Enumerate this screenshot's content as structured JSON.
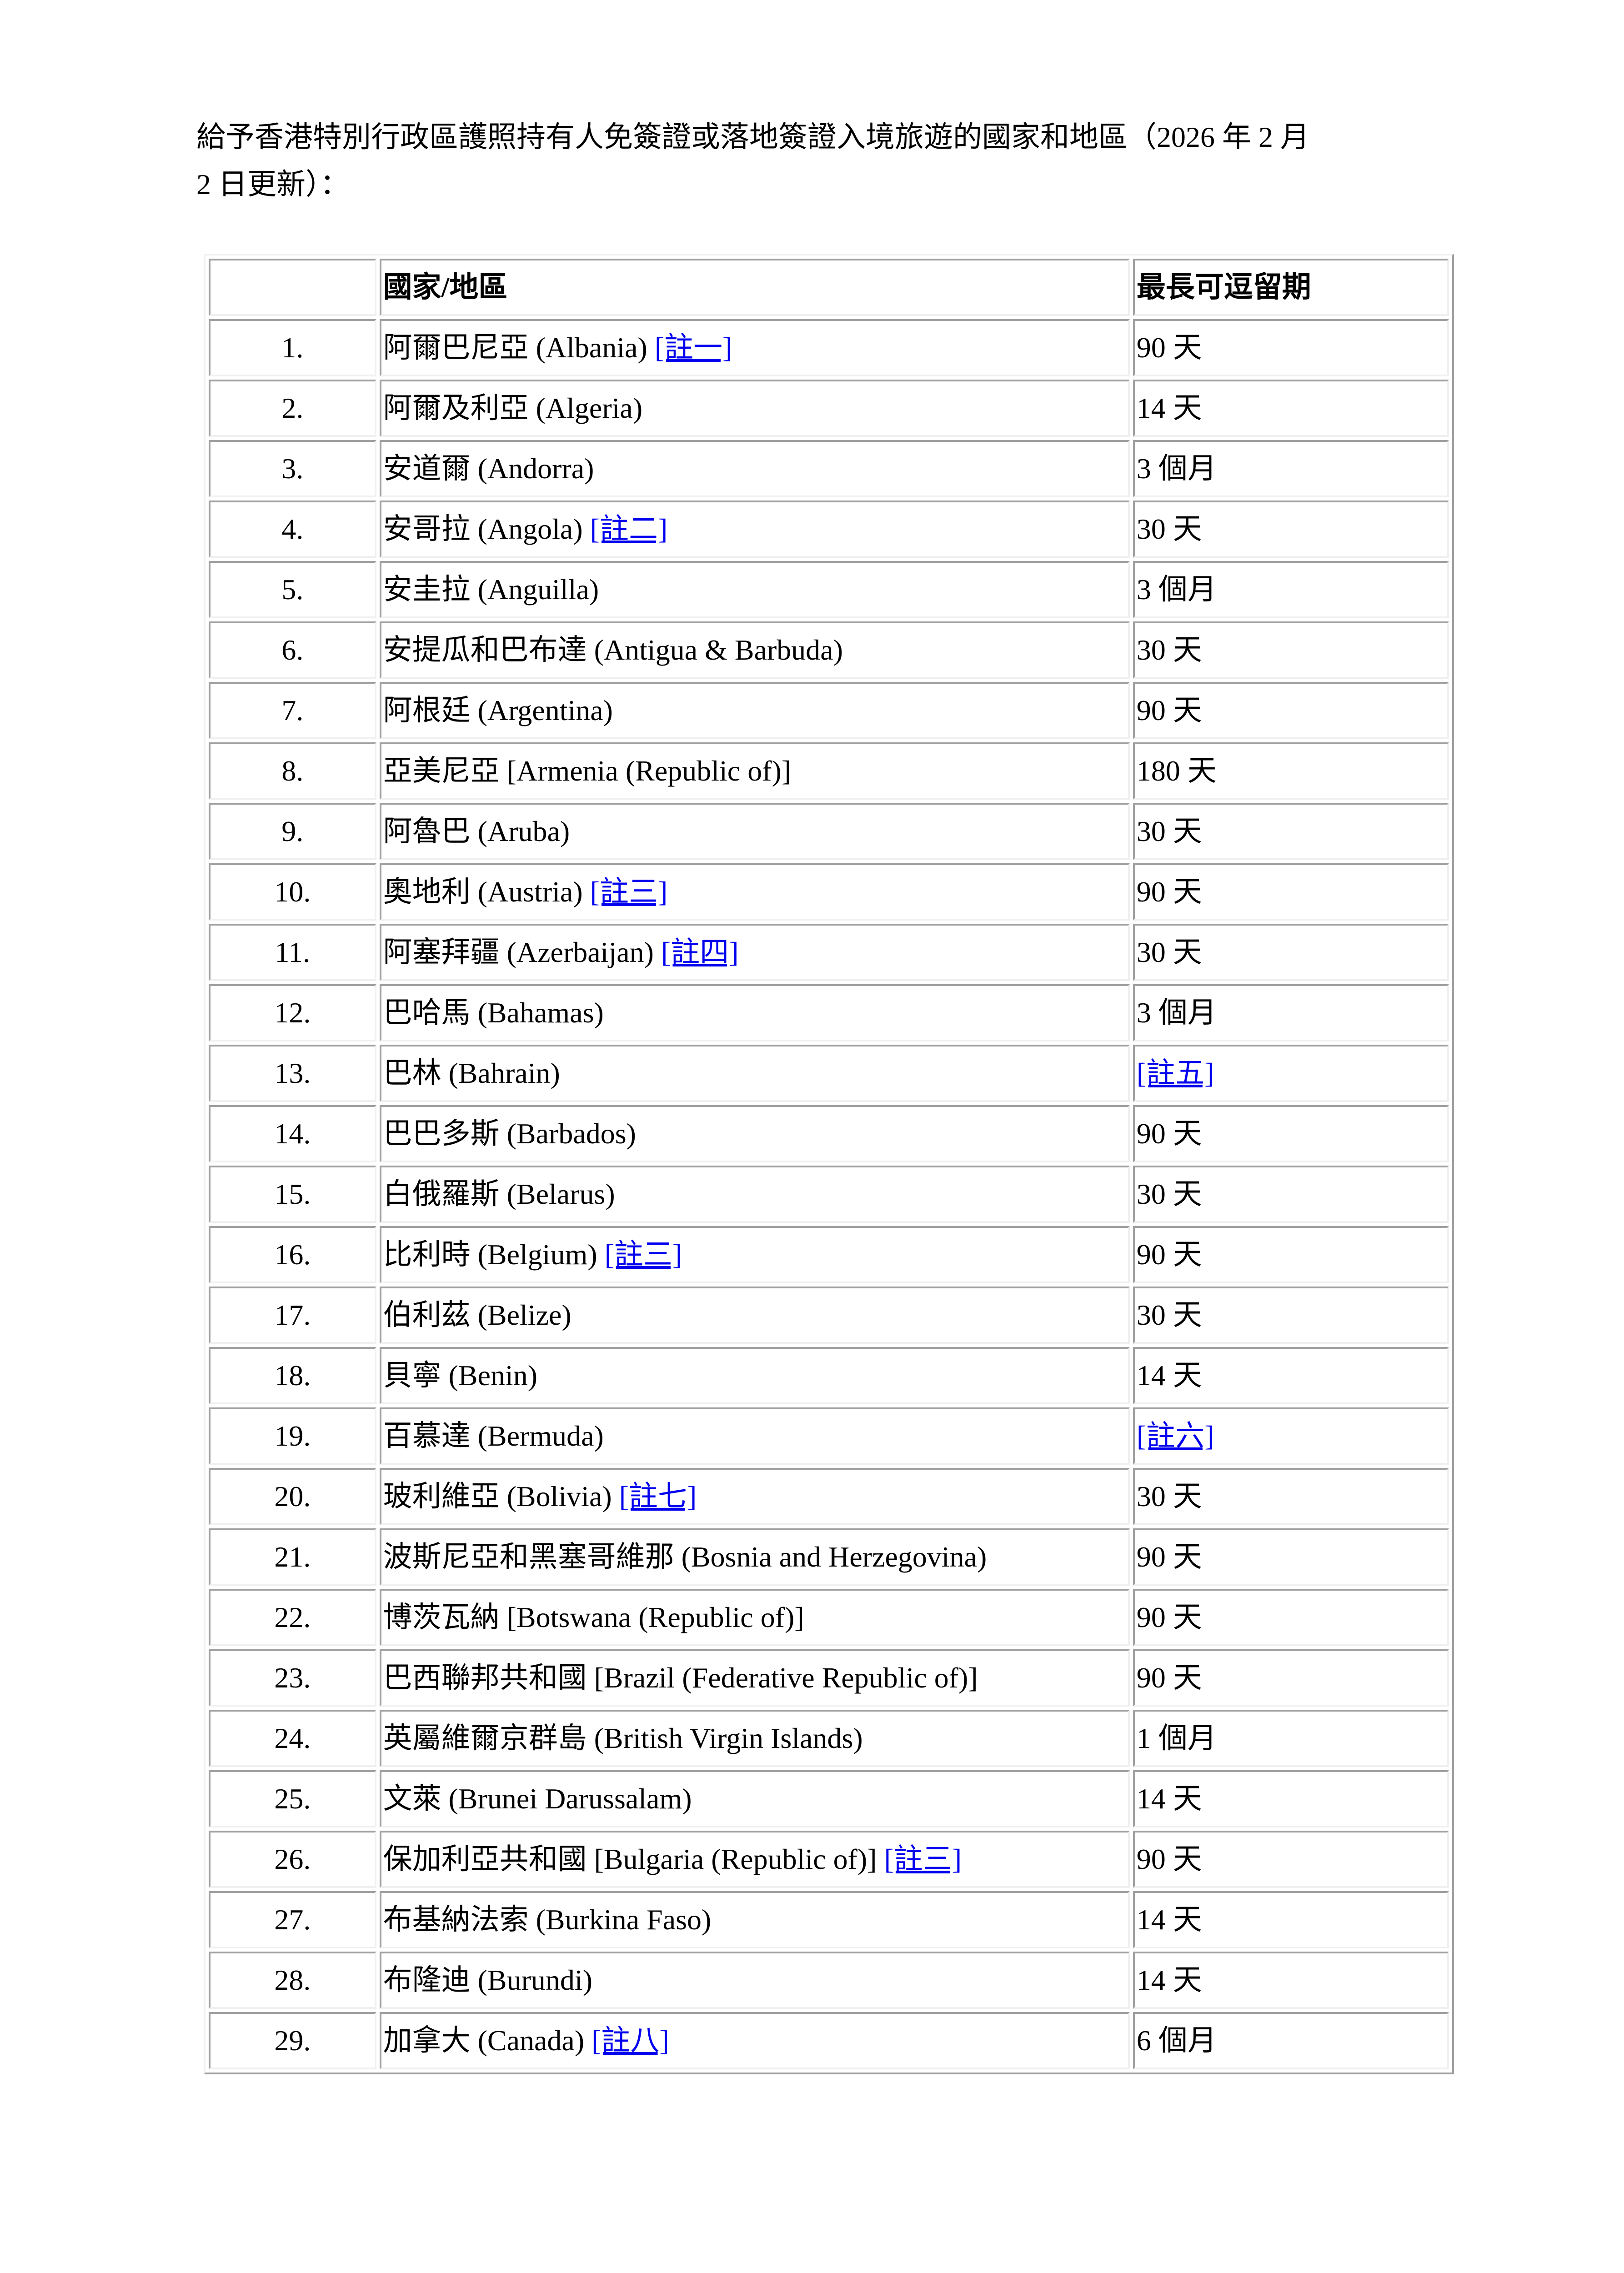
{
  "intro": {
    "line1": "給予香港特別行政區護照持有人免簽證或落地簽證入境旅遊的國家和地區（2026 年 2 月",
    "line2": "2 日更新）："
  },
  "table": {
    "headers": [
      "",
      "國家/地區",
      "最長可逗留期"
    ],
    "link_color": "#0000ee",
    "rows": [
      {
        "no": "1.",
        "country": "阿爾巴尼亞 (Albania)",
        "note": "[註一]",
        "stay": "90 天"
      },
      {
        "no": "2.",
        "country": "阿爾及利亞 (Algeria)",
        "note": "",
        "stay": "14 天"
      },
      {
        "no": "3.",
        "country": "安道爾 (Andorra)",
        "note": "",
        "stay": "3 個月"
      },
      {
        "no": "4.",
        "country": "安哥拉 (Angola)",
        "note": "[註二]",
        "stay": "30 天"
      },
      {
        "no": "5.",
        "country": "安圭拉 (Anguilla)",
        "note": "",
        "stay": "3 個月"
      },
      {
        "no": "6.",
        "country": "安提瓜和巴布達 (Antigua & Barbuda)",
        "note": "",
        "stay": "30 天"
      },
      {
        "no": "7.",
        "country": "阿根廷 (Argentina)",
        "note": "",
        "stay": "90 天"
      },
      {
        "no": "8.",
        "country": "亞美尼亞 [Armenia (Republic of)]",
        "note": "",
        "stay": "180 天"
      },
      {
        "no": "9.",
        "country": "阿魯巴 (Aruba)",
        "note": "",
        "stay": "30 天"
      },
      {
        "no": "10.",
        "country": "奧地利 (Austria)",
        "note": "[註三]",
        "stay": "90 天"
      },
      {
        "no": "11.",
        "country": "阿塞拜疆 (Azerbaijan)",
        "note": "[註四]",
        "stay": "30 天"
      },
      {
        "no": "12.",
        "country": "巴哈馬 (Bahamas)",
        "note": "",
        "stay": "3 個月"
      },
      {
        "no": "13.",
        "country": "巴林 (Bahrain)",
        "note": "",
        "stay": "",
        "stay_note": "[註五]"
      },
      {
        "no": "14.",
        "country": "巴巴多斯 (Barbados)",
        "note": "",
        "stay": "90 天"
      },
      {
        "no": "15.",
        "country": "白俄羅斯 (Belarus)",
        "note": "",
        "stay": "30 天"
      },
      {
        "no": "16.",
        "country": "比利時 (Belgium)",
        "note": "[註三]",
        "stay": "90 天"
      },
      {
        "no": "17.",
        "country": "伯利茲 (Belize)",
        "note": "",
        "stay": "30 天"
      },
      {
        "no": "18.",
        "country": "貝寧 (Benin)",
        "note": "",
        "stay": "14 天"
      },
      {
        "no": "19.",
        "country": "百慕達 (Bermuda)",
        "note": "",
        "stay": "",
        "stay_note": "[註六]"
      },
      {
        "no": "20.",
        "country": "玻利維亞 (Bolivia)",
        "note": "[註七]",
        "stay": "30 天"
      },
      {
        "no": "21.",
        "country": "波斯尼亞和黑塞哥維那 (Bosnia and Herzegovina)",
        "note": "",
        "stay": "90 天"
      },
      {
        "no": "22.",
        "country": "博茨瓦納 [Botswana (Republic of)]",
        "note": "",
        "stay": "90 天"
      },
      {
        "no": "23.",
        "country": "巴西聯邦共和國 [Brazil (Federative Republic of)]",
        "note": "",
        "stay": "90 天"
      },
      {
        "no": "24.",
        "country": "英屬維爾京群島 (British Virgin Islands)",
        "note": "",
        "stay": "1 個月"
      },
      {
        "no": "25.",
        "country": "文萊 (Brunei Darussalam)",
        "note": "",
        "stay": "14 天"
      },
      {
        "no": "26.",
        "country": "保加利亞共和國 [Bulgaria (Republic of)]",
        "note": "[註三]",
        "stay": "90 天"
      },
      {
        "no": "27.",
        "country": "布基納法索 (Burkina Faso)",
        "note": "",
        "stay": "14 天"
      },
      {
        "no": "28.",
        "country": "布隆迪 (Burundi)",
        "note": "",
        "stay": "14 天"
      },
      {
        "no": "29.",
        "country": "加拿大 (Canada)",
        "note": "[註八]",
        "stay": "6 個月"
      }
    ]
  }
}
